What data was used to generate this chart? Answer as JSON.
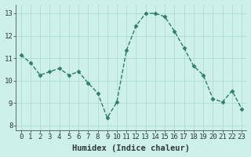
{
  "x": [
    0,
    1,
    2,
    3,
    4,
    5,
    6,
    7,
    8,
    9,
    10,
    11,
    12,
    13,
    14,
    15,
    16,
    17,
    18,
    19,
    20,
    21,
    22,
    23
  ],
  "y": [
    11.15,
    10.8,
    10.25,
    10.4,
    10.55,
    10.25,
    10.4,
    9.9,
    9.45,
    8.35,
    9.05,
    11.35,
    12.45,
    13.0,
    13.0,
    12.85,
    12.2,
    11.45,
    10.65,
    10.25,
    9.2,
    9.05,
    9.55,
    8.75
  ],
  "line_color": "#2e7d6e",
  "marker": "D",
  "marker_size": 2.5,
  "bg_color": "#cef0ea",
  "grid_color": "#aad8d0",
  "xlabel": "Humidex (Indice chaleur)",
  "xlim": [
    -0.5,
    23.5
  ],
  "ylim": [
    7.8,
    13.4
  ],
  "yticks": [
    8,
    9,
    10,
    11,
    12,
    13
  ],
  "xticks": [
    0,
    1,
    2,
    3,
    4,
    5,
    6,
    7,
    8,
    9,
    10,
    11,
    12,
    13,
    14,
    15,
    16,
    17,
    18,
    19,
    20,
    21,
    22,
    23
  ],
  "font_color": "#2e3a3a",
  "xlabel_fontsize": 7.5,
  "tick_fontsize": 6.5,
  "linewidth": 1.0
}
